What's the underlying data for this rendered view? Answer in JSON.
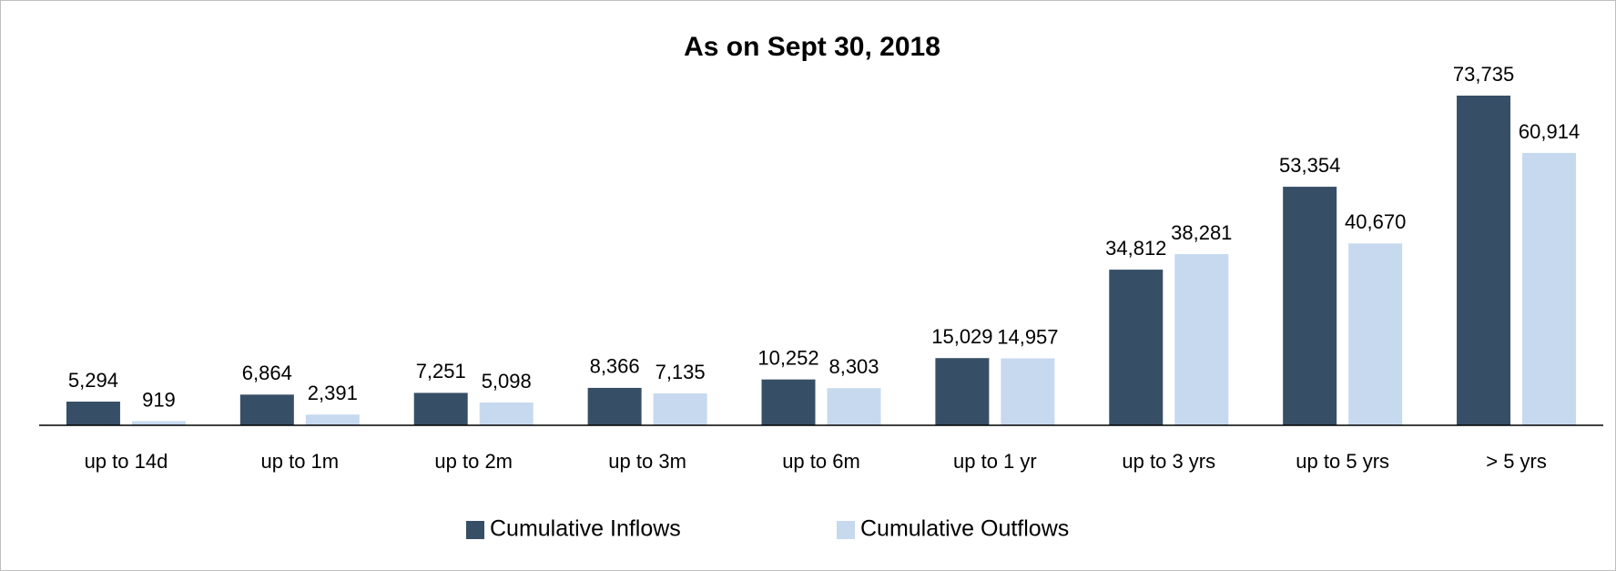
{
  "chart_data": {
    "type": "bar",
    "title": "As on Sept 30, 2018",
    "categories": [
      "up to 14d",
      "up to 1m",
      "up to 2m",
      "up to 3m",
      "up to 6m",
      "up to 1 yr",
      "up to 3 yrs",
      "up to 5 yrs",
      "> 5 yrs"
    ],
    "series": [
      {
        "name": "Cumulative Inflows",
        "color": "#374f66",
        "values": [
          5294,
          6864,
          7251,
          8366,
          10252,
          15029,
          34812,
          53354,
          73735
        ],
        "value_labels": [
          "5,294",
          "6,864",
          "7,251",
          "8,366",
          "10,252",
          "15,029",
          "34,812",
          "53,354",
          "73,735"
        ]
      },
      {
        "name": "Cumulative Outflows",
        "color": "#c6d9ef",
        "values": [
          919,
          2391,
          5098,
          7135,
          8303,
          14957,
          38281,
          40670,
          60914
        ],
        "value_labels": [
          "919",
          "2,391",
          "5,098",
          "7,135",
          "8,303",
          "14,957",
          "38,281",
          "40,670",
          "60,914"
        ]
      }
    ],
    "legend": "bottom"
  }
}
